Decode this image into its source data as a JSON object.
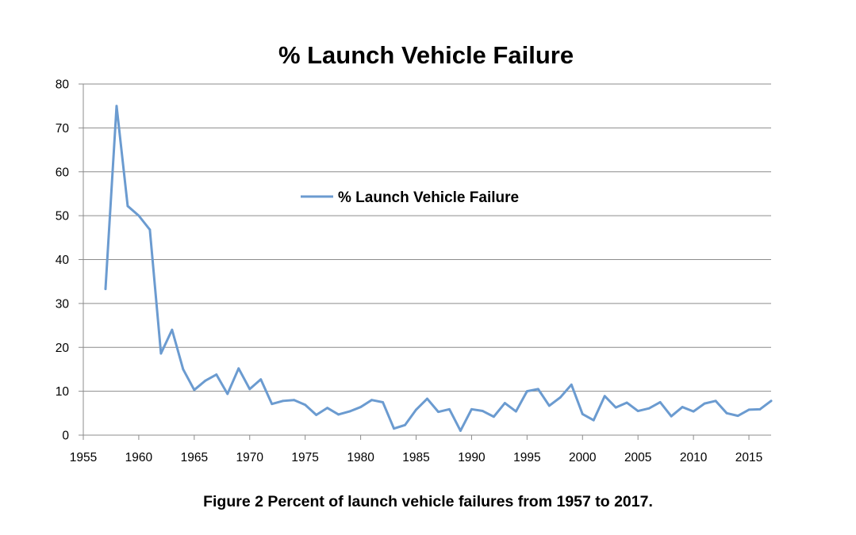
{
  "chart_data": {
    "type": "line",
    "title": "% Launch Vehicle Failure",
    "xlabel": "",
    "ylabel": "",
    "xlim": [
      1955,
      2017
    ],
    "ylim": [
      0,
      80
    ],
    "x_ticks": [
      1955,
      1960,
      1965,
      1970,
      1975,
      1980,
      1985,
      1990,
      1995,
      2000,
      2005,
      2010,
      2015
    ],
    "y_ticks": [
      0,
      10,
      20,
      30,
      40,
      50,
      60,
      70,
      80
    ],
    "grid": "horizontal",
    "legend_position": "upper-center",
    "series": [
      {
        "name": "% Launch Vehicle Failure",
        "color": "#6b9bd0",
        "x": [
          1957,
          1958,
          1959,
          1960,
          1961,
          1962,
          1963,
          1964,
          1965,
          1966,
          1967,
          1968,
          1969,
          1970,
          1971,
          1972,
          1973,
          1974,
          1975,
          1976,
          1977,
          1978,
          1979,
          1980,
          1981,
          1982,
          1983,
          1984,
          1985,
          1986,
          1987,
          1988,
          1989,
          1990,
          1991,
          1992,
          1993,
          1994,
          1995,
          1996,
          1997,
          1998,
          1999,
          2000,
          2001,
          2002,
          2003,
          2004,
          2005,
          2006,
          2007,
          2008,
          2009,
          2010,
          2011,
          2012,
          2013,
          2014,
          2015,
          2016,
          2017
        ],
        "values": [
          33.3,
          75,
          52.2,
          50,
          46.8,
          18.6,
          24,
          15,
          10.3,
          12.4,
          13.8,
          9.4,
          15.2,
          10.5,
          12.7,
          7.1,
          7.8,
          8,
          6.9,
          4.6,
          6.2,
          4.7,
          5.4,
          6.4,
          8,
          7.5,
          1.5,
          2.3,
          5.8,
          8.3,
          5.3,
          5.9,
          1,
          5.9,
          5.5,
          4.2,
          7.3,
          5.4,
          10,
          10.5,
          6.7,
          8.6,
          11.5,
          4.8,
          3.4,
          8.9,
          6.3,
          7.4,
          5.5,
          6.1,
          7.5,
          4.3,
          6.4,
          5.4,
          7.2,
          7.8,
          5,
          4.4,
          5.8,
          5.9,
          7.8
        ]
      }
    ]
  },
  "caption": "Figure 2  Percent of launch vehicle failures from 1957 to 2017."
}
